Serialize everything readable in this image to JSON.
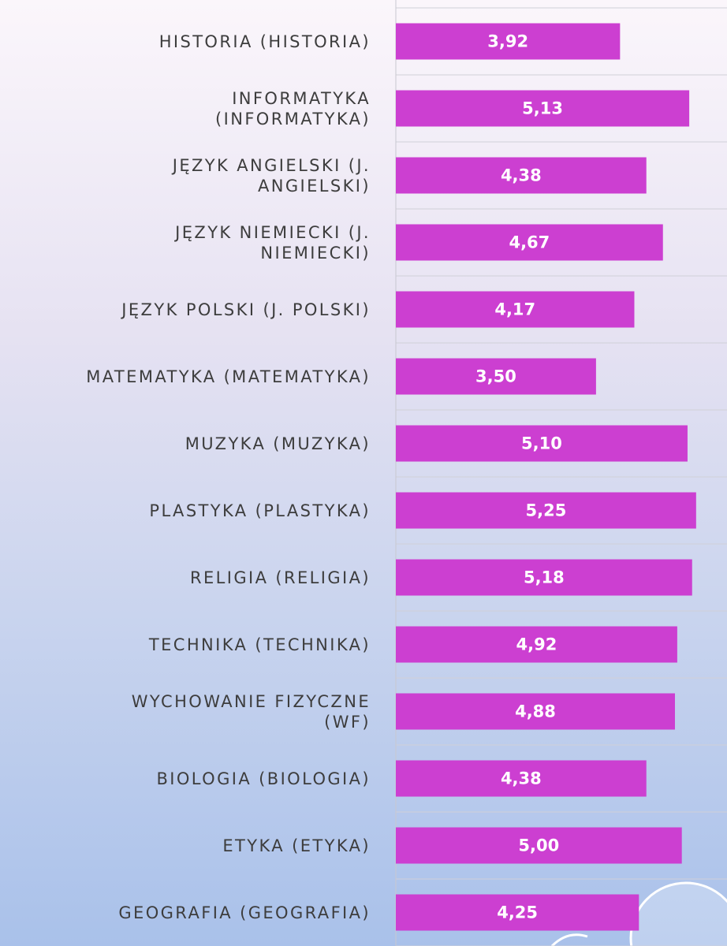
{
  "chart_data": {
    "type": "barh",
    "categories": [
      "HISTORIA (HISTORIA)",
      "INFORMATYKA\n(INFORMATYKA)",
      "JĘZYK ANGIELSKI (J.\nANGIELSKI)",
      "JĘZYK NIEMIECKI (J.\nNIEMIECKI)",
      "JĘZYK POLSKI (J. POLSKI)",
      "MATEMATYKA (MATEMATYKA)",
      "MUZYKA (MUZYKA)",
      "PLASTYKA (PLASTYKA)",
      "RELIGIA (RELIGIA)",
      "TECHNIKA (TECHNIKA)",
      "WYCHOWANIE FIZYCZNE\n(WF)",
      "BIOLOGIA (BIOLOGIA)",
      "ETYKA (ETYKA)",
      "GEOGRAFIA (GEOGRAFIA)"
    ],
    "values": [
      3.92,
      5.13,
      4.38,
      4.67,
      4.17,
      3.5,
      5.1,
      5.25,
      5.18,
      4.92,
      4.88,
      4.38,
      5.0,
      4.25
    ],
    "value_labels": [
      "3,92",
      "5,13",
      "4,38",
      "4,67",
      "4,17",
      "3,50",
      "5,10",
      "5,25",
      "5,18",
      "4,92",
      "4,88",
      "4,38",
      "5,00",
      "4,25"
    ],
    "color": "#cc3fd1",
    "xlim": [
      0,
      5.79
    ]
  }
}
